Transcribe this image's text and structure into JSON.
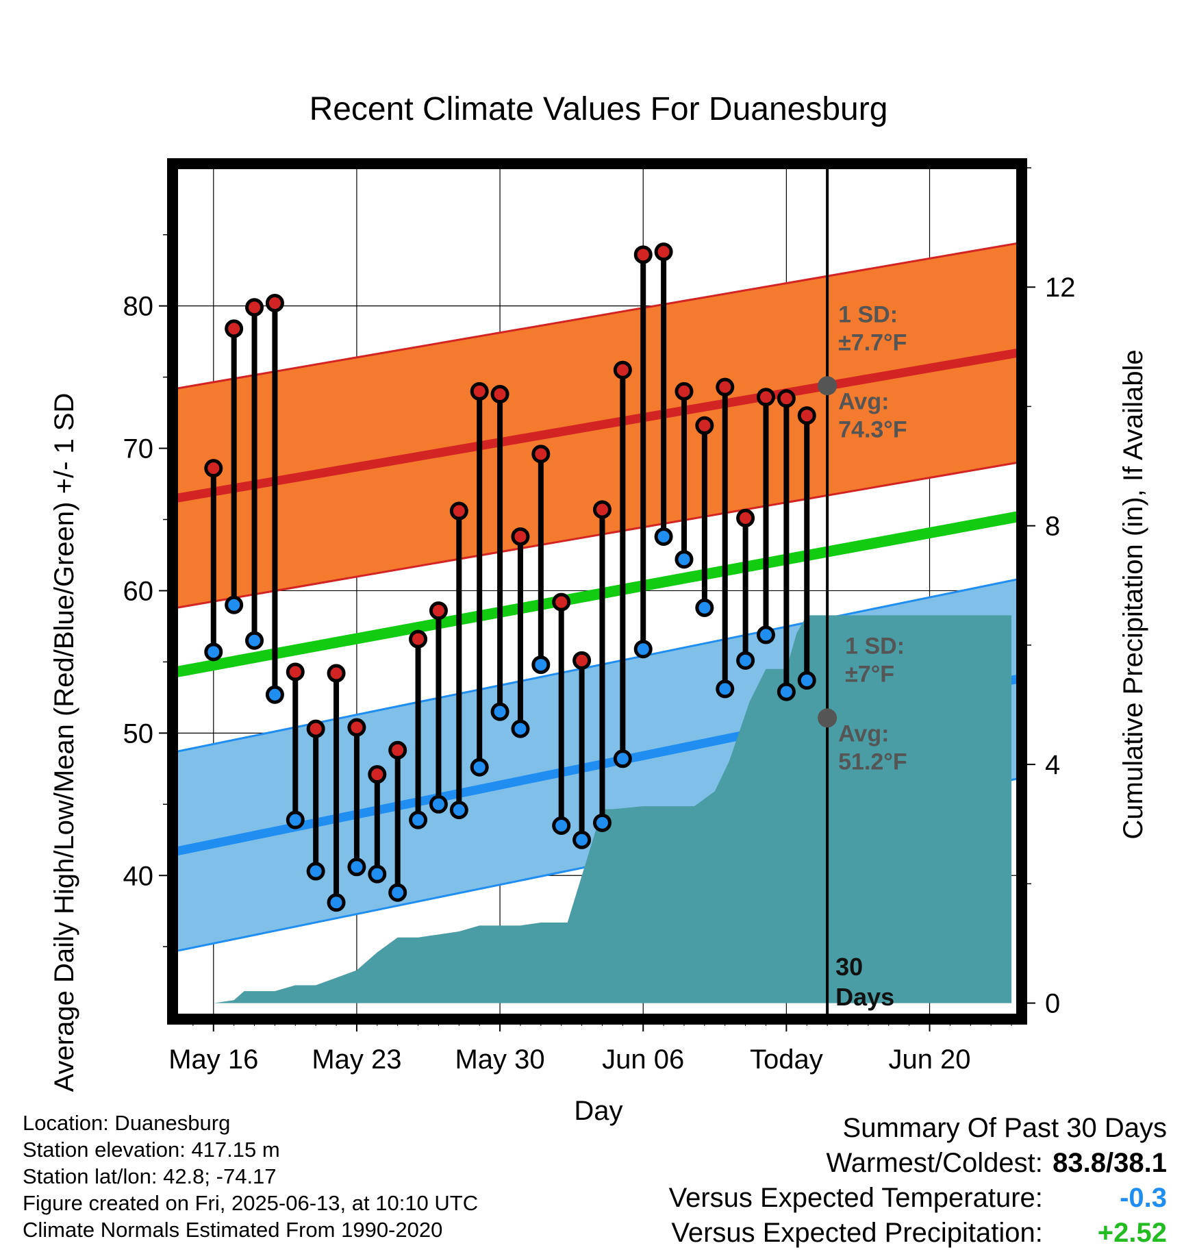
{
  "chart_data": {
    "type": "line",
    "title": "Recent Climate Values For Duanesburg",
    "xlabel": "Day",
    "ylabel_left": "Average Daily High/Low/Mean (Red/Blue/Green) +/- 1 SD",
    "ylabel_right": "Cumulative Precipitation (in), If Available",
    "x_tick_labels": [
      "May 16",
      "May 23",
      "May 30",
      "Jun 06",
      "Today",
      "Jun 20"
    ],
    "y_ticks_left": [
      "40",
      "50",
      "60",
      "70",
      "80"
    ],
    "y_ticks_right": [
      "0",
      "4",
      "8",
      "12"
    ],
    "x_range_days": [
      -1.8,
      39.3
    ],
    "ylim_left": [
      30.2,
      89.7
    ],
    "ylim_right": [
      -0.2,
      14.0
    ],
    "grid": true,
    "today_index": 30,
    "days_label": "30\nDays",
    "daily_high": [
      68.6,
      78.4,
      79.9,
      80.2,
      54.3,
      50.3,
      54.2,
      50.4,
      47.1,
      48.8,
      56.6,
      58.6,
      65.6,
      74.0,
      73.8,
      63.8,
      69.6,
      59.2,
      55.1,
      65.7,
      75.5,
      83.6,
      83.8,
      74.0,
      71.6,
      74.3,
      65.1,
      73.6,
      73.5,
      72.3
    ],
    "daily_low": [
      55.7,
      59.0,
      56.5,
      52.7,
      43.9,
      40.3,
      38.1,
      40.6,
      40.1,
      38.8,
      43.9,
      45.0,
      44.6,
      47.6,
      51.5,
      50.3,
      54.8,
      43.5,
      42.5,
      43.7,
      48.2,
      55.9,
      63.8,
      62.2,
      58.8,
      53.1,
      55.1,
      56.9,
      52.9,
      53.7
    ],
    "normal_high_start": 66.5,
    "normal_high_end": 76.7,
    "normal_high_sd": 7.7,
    "normal_low_start": 41.7,
    "normal_low_end": 53.8,
    "normal_low_sd": 7.0,
    "normal_mean_start": 54.3,
    "normal_mean_end": 65.2,
    "precip_days": [
      0,
      1,
      1.5,
      3,
      4,
      5,
      7,
      8,
      9,
      10,
      12,
      13,
      15,
      16,
      16.8,
      17.3,
      19,
      19.5,
      21,
      22,
      23.5,
      24.5,
      25.2,
      26.2,
      27,
      28,
      28.5,
      29,
      39
    ],
    "precip_cum": [
      0.0,
      0.05,
      0.2,
      0.2,
      0.3,
      0.3,
      0.55,
      0.85,
      1.1,
      1.1,
      1.2,
      1.3,
      1.3,
      1.35,
      1.35,
      1.35,
      3.25,
      3.25,
      3.3,
      3.3,
      3.3,
      3.55,
      4.05,
      5.05,
      5.6,
      5.6,
      6.2,
      6.5,
      6.5
    ],
    "legend": {
      "high_sd_label": "1 SD:",
      "high_sd_value": "±7.7°F",
      "high_avg_label": "Avg:",
      "high_avg_value": "74.3°F",
      "low_sd_label": "1 SD:",
      "low_sd_value": "±7°F",
      "low_avg_label": "Avg:",
      "low_avg_value": "51.2°F"
    },
    "colors": {
      "high_band": "#f47b2e",
      "high_line": "#d32424",
      "low_band": "#80c0e8",
      "low_line": "#1f8ef0",
      "mean_line": "#11cc11",
      "precip": "#4a9ca5",
      "high_dot": "#d32424",
      "low_dot": "#1f8ef0"
    }
  },
  "station": {
    "location": "Location: Duanesburg",
    "elevation": "Station elevation: 417.15 m",
    "latlon": "Station lat/lon: 42.8; -74.17",
    "created": "Figure created on Fri, 2025-06-13, at 10:10 UTC",
    "normals": "Climate Normals Estimated From 1990-2020"
  },
  "summary": {
    "heading": "Summary Of Past 30 Days",
    "warm_cold_label": "Warmest/Coldest:",
    "warm_cold_value": "83.8/38.1",
    "temp_label": "Versus Expected Temperature:",
    "temp_value": "-0.3",
    "temp_color": "#1f8ef0",
    "precip_label": "Versus Expected Precipitation:",
    "precip_value": "+2.52",
    "precip_color": "#22bb22"
  }
}
